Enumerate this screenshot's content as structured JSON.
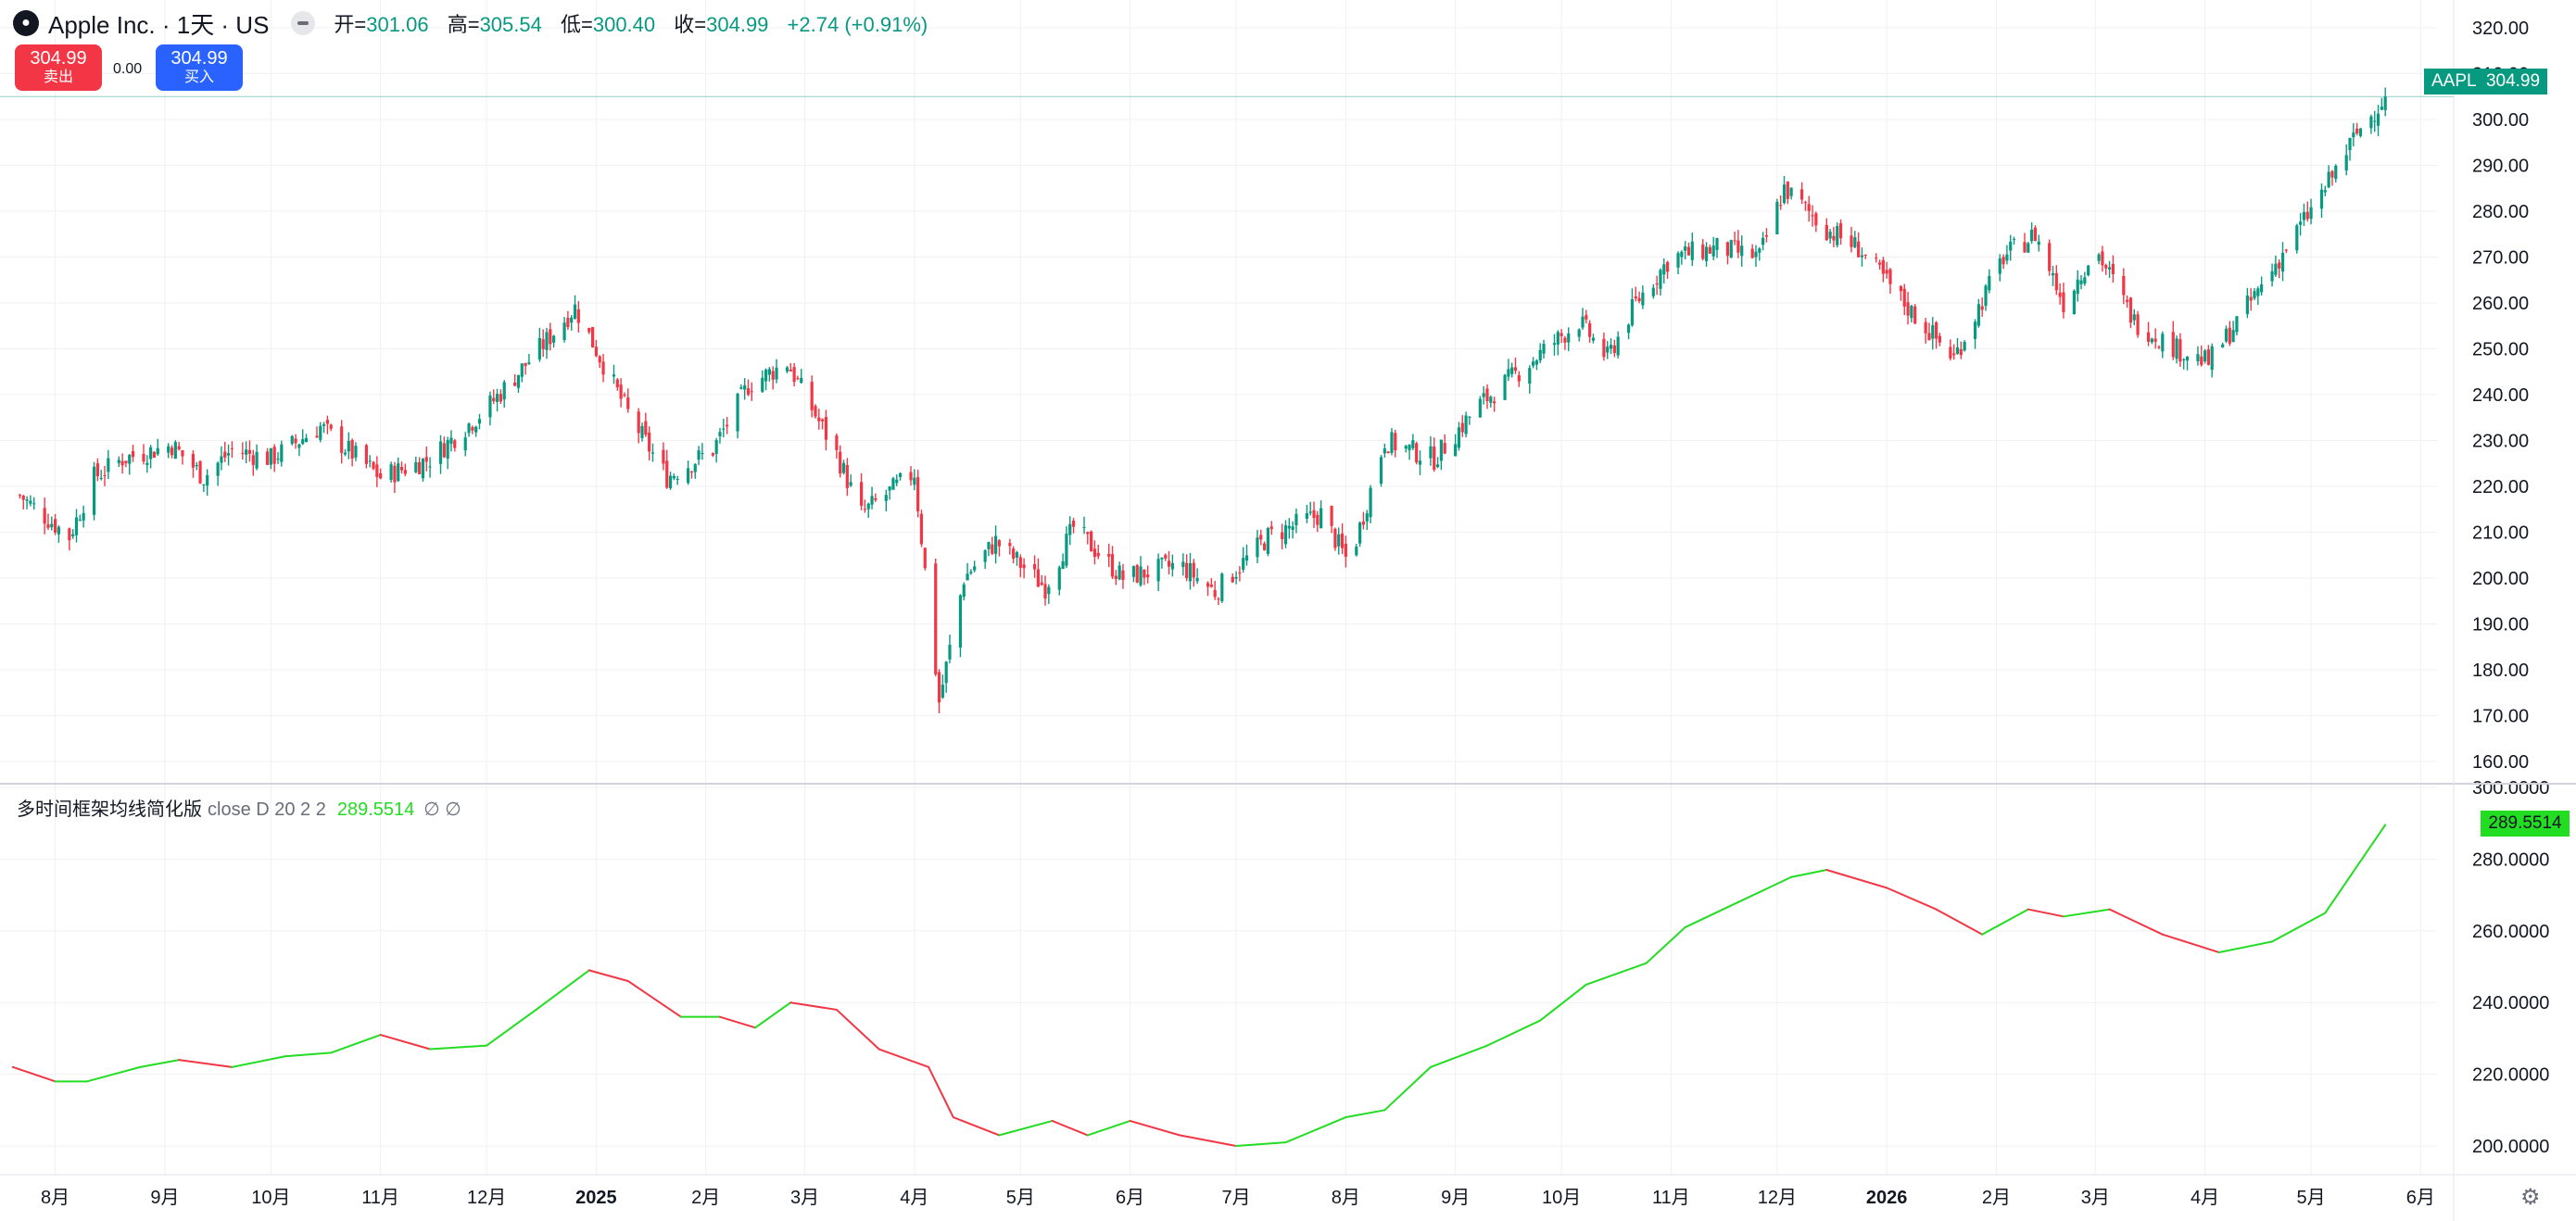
{
  "header": {
    "logo_icon": "apple-logo-icon",
    "title": "Apple Inc. · 1天 · US",
    "ohlc": {
      "open_label": "开=",
      "open": "301.06",
      "high_label": "高=",
      "high": "305.54",
      "low_label": "低=",
      "low": "300.40",
      "close_label": "收=",
      "close": "304.99",
      "change": "+2.74 (+0.91%)"
    }
  },
  "trade": {
    "sell_price": "304.99",
    "sell_label": "卖出",
    "spread": "0.00",
    "buy_price": "304.99",
    "buy_label": "买入"
  },
  "price_tag": {
    "symbol": "AAPL",
    "value": "304.99"
  },
  "indicator": {
    "name": "多时间框架均线简化版",
    "args": "close D 20 2 2",
    "value": "289.5514",
    "symbols": "∅ ∅"
  },
  "colors": {
    "up": "#089981",
    "down": "#f23645",
    "ma_up": "#22dd22",
    "ma_down": "#f23645",
    "axis_text": "#131722"
  },
  "settings_icon": "gear-icon",
  "chart_data": [
    {
      "type": "candlestick",
      "series": [
        {
          "name": "AAPL"
        }
      ],
      "last_price": 304.99,
      "ylim": [
        160,
        320
      ],
      "yticks": [
        "320.00",
        "310.00",
        "300.00",
        "290.00",
        "280.00",
        "270.00",
        "260.00",
        "250.00",
        "240.00",
        "230.00",
        "220.00",
        "210.00",
        "200.00",
        "190.00",
        "180.00",
        "170.00",
        "160.00"
      ],
      "x_tick_labels": [
        "8月",
        "9月",
        "10月",
        "11月",
        "12月",
        "2025",
        "2月",
        "3月",
        "4月",
        "5月",
        "6月",
        "7月",
        "8月",
        "9月",
        "10月",
        "11月",
        "12月",
        "2026",
        "2月",
        "3月",
        "4月",
        "5月",
        "6月"
      ],
      "x_tick_dates": [
        "2024-08-01",
        "2024-09-01",
        "2024-10-01",
        "2024-11-01",
        "2024-12-01",
        "2025-01-01",
        "2025-02-01",
        "2025-03-01",
        "2025-04-01",
        "2025-05-01",
        "2025-06-01",
        "2025-07-01",
        "2025-08-01",
        "2025-09-01",
        "2025-10-01",
        "2025-11-01",
        "2025-12-01",
        "2026-01-01",
        "2026-02-01",
        "2026-03-01",
        "2026-04-01",
        "2026-05-01",
        "2026-06-01"
      ],
      "close_path": [
        {
          "x": "2024-07-22",
          "y": 218
        },
        {
          "x": "2024-08-05",
          "y": 209
        },
        {
          "x": "2024-08-12",
          "y": 222
        },
        {
          "x": "2024-08-20",
          "y": 226
        },
        {
          "x": "2024-09-03",
          "y": 229
        },
        {
          "x": "2024-09-12",
          "y": 222
        },
        {
          "x": "2024-09-20",
          "y": 228
        },
        {
          "x": "2024-10-01",
          "y": 226
        },
        {
          "x": "2024-10-15",
          "y": 233
        },
        {
          "x": "2024-11-01",
          "y": 222
        },
        {
          "x": "2024-11-15",
          "y": 226
        },
        {
          "x": "2024-12-01",
          "y": 237
        },
        {
          "x": "2024-12-16",
          "y": 250
        },
        {
          "x": "2024-12-26",
          "y": 259
        },
        {
          "x": "2025-01-10",
          "y": 236
        },
        {
          "x": "2025-01-21",
          "y": 222
        },
        {
          "x": "2025-02-03",
          "y": 228
        },
        {
          "x": "2025-02-13",
          "y": 242
        },
        {
          "x": "2025-02-24",
          "y": 247
        },
        {
          "x": "2025-03-10",
          "y": 227
        },
        {
          "x": "2025-03-17",
          "y": 214
        },
        {
          "x": "2025-04-01",
          "y": 223
        },
        {
          "x": "2025-04-08",
          "y": 173
        },
        {
          "x": "2025-04-15",
          "y": 200
        },
        {
          "x": "2025-04-24",
          "y": 208
        },
        {
          "x": "2025-05-08",
          "y": 198
        },
        {
          "x": "2025-05-16",
          "y": 211
        },
        {
          "x": "2025-05-30",
          "y": 200
        },
        {
          "x": "2025-06-15",
          "y": 203
        },
        {
          "x": "2025-06-25",
          "y": 197
        },
        {
          "x": "2025-07-10",
          "y": 209
        },
        {
          "x": "2025-07-25",
          "y": 214
        },
        {
          "x": "2025-08-02",
          "y": 203
        },
        {
          "x": "2025-08-12",
          "y": 230
        },
        {
          "x": "2025-08-26",
          "y": 226
        },
        {
          "x": "2025-09-08",
          "y": 238
        },
        {
          "x": "2025-09-22",
          "y": 247
        },
        {
          "x": "2025-10-06",
          "y": 256
        },
        {
          "x": "2025-10-14",
          "y": 248
        },
        {
          "x": "2025-10-22",
          "y": 260
        },
        {
          "x": "2025-11-01",
          "y": 270
        },
        {
          "x": "2025-11-14",
          "y": 272
        },
        {
          "x": "2025-11-26",
          "y": 270
        },
        {
          "x": "2025-12-03",
          "y": 285
        },
        {
          "x": "2025-12-15",
          "y": 276
        },
        {
          "x": "2025-12-24",
          "y": 272
        },
        {
          "x": "2026-01-08",
          "y": 258
        },
        {
          "x": "2026-01-20",
          "y": 248
        },
        {
          "x": "2026-02-03",
          "y": 270
        },
        {
          "x": "2026-02-12",
          "y": 275
        },
        {
          "x": "2026-02-20",
          "y": 260
        },
        {
          "x": "2026-03-01",
          "y": 272
        },
        {
          "x": "2026-03-12",
          "y": 256
        },
        {
          "x": "2026-03-24",
          "y": 250
        },
        {
          "x": "2026-04-02",
          "y": 247
        },
        {
          "x": "2026-04-12",
          "y": 258
        },
        {
          "x": "2026-04-24",
          "y": 272
        },
        {
          "x": "2026-05-05",
          "y": 285
        },
        {
          "x": "2026-05-14",
          "y": 297
        },
        {
          "x": "2026-05-22",
          "y": 304.99
        }
      ]
    },
    {
      "type": "line",
      "series": [
        {
          "name": "多时间框架均线简化版"
        }
      ],
      "last_value": 289.5514,
      "ylim": [
        190,
        300
      ],
      "yticks": [
        "300.0000",
        "280.0000",
        "260.0000",
        "240.0000",
        "220.0000",
        "200.0000"
      ],
      "points": [
        {
          "x": "2024-07-20",
          "y": 222
        },
        {
          "x": "2024-08-01",
          "y": 218
        },
        {
          "x": "2024-08-10",
          "y": 218
        },
        {
          "x": "2024-08-25",
          "y": 222
        },
        {
          "x": "2024-09-05",
          "y": 224
        },
        {
          "x": "2024-09-20",
          "y": 222
        },
        {
          "x": "2024-10-05",
          "y": 225
        },
        {
          "x": "2024-10-18",
          "y": 226
        },
        {
          "x": "2024-11-01",
          "y": 231
        },
        {
          "x": "2024-11-15",
          "y": 227
        },
        {
          "x": "2024-12-01",
          "y": 228
        },
        {
          "x": "2024-12-15",
          "y": 238
        },
        {
          "x": "2024-12-30",
          "y": 249
        },
        {
          "x": "2025-01-10",
          "y": 246
        },
        {
          "x": "2025-01-25",
          "y": 236
        },
        {
          "x": "2025-02-05",
          "y": 236
        },
        {
          "x": "2025-02-15",
          "y": 233
        },
        {
          "x": "2025-02-25",
          "y": 240
        },
        {
          "x": "2025-03-10",
          "y": 238
        },
        {
          "x": "2025-03-22",
          "y": 227
        },
        {
          "x": "2025-04-05",
          "y": 222
        },
        {
          "x": "2025-04-12",
          "y": 208
        },
        {
          "x": "2025-04-25",
          "y": 203
        },
        {
          "x": "2025-05-10",
          "y": 207
        },
        {
          "x": "2025-05-20",
          "y": 203
        },
        {
          "x": "2025-06-01",
          "y": 207
        },
        {
          "x": "2025-06-15",
          "y": 203
        },
        {
          "x": "2025-07-01",
          "y": 200
        },
        {
          "x": "2025-07-15",
          "y": 201
        },
        {
          "x": "2025-08-01",
          "y": 208
        },
        {
          "x": "2025-08-12",
          "y": 210
        },
        {
          "x": "2025-08-25",
          "y": 222
        },
        {
          "x": "2025-09-10",
          "y": 228
        },
        {
          "x": "2025-09-25",
          "y": 235
        },
        {
          "x": "2025-10-08",
          "y": 245
        },
        {
          "x": "2025-10-25",
          "y": 251
        },
        {
          "x": "2025-11-05",
          "y": 261
        },
        {
          "x": "2025-11-20",
          "y": 268
        },
        {
          "x": "2025-12-05",
          "y": 275
        },
        {
          "x": "2025-12-15",
          "y": 277
        },
        {
          "x": "2026-01-01",
          "y": 272
        },
        {
          "x": "2026-01-15",
          "y": 266
        },
        {
          "x": "2026-01-28",
          "y": 259
        },
        {
          "x": "2026-02-10",
          "y": 266
        },
        {
          "x": "2026-02-20",
          "y": 264
        },
        {
          "x": "2026-03-05",
          "y": 266
        },
        {
          "x": "2026-03-20",
          "y": 259
        },
        {
          "x": "2026-04-05",
          "y": 254
        },
        {
          "x": "2026-04-20",
          "y": 257
        },
        {
          "x": "2026-05-05",
          "y": 265
        },
        {
          "x": "2026-05-22",
          "y": 289.55
        }
      ]
    }
  ]
}
